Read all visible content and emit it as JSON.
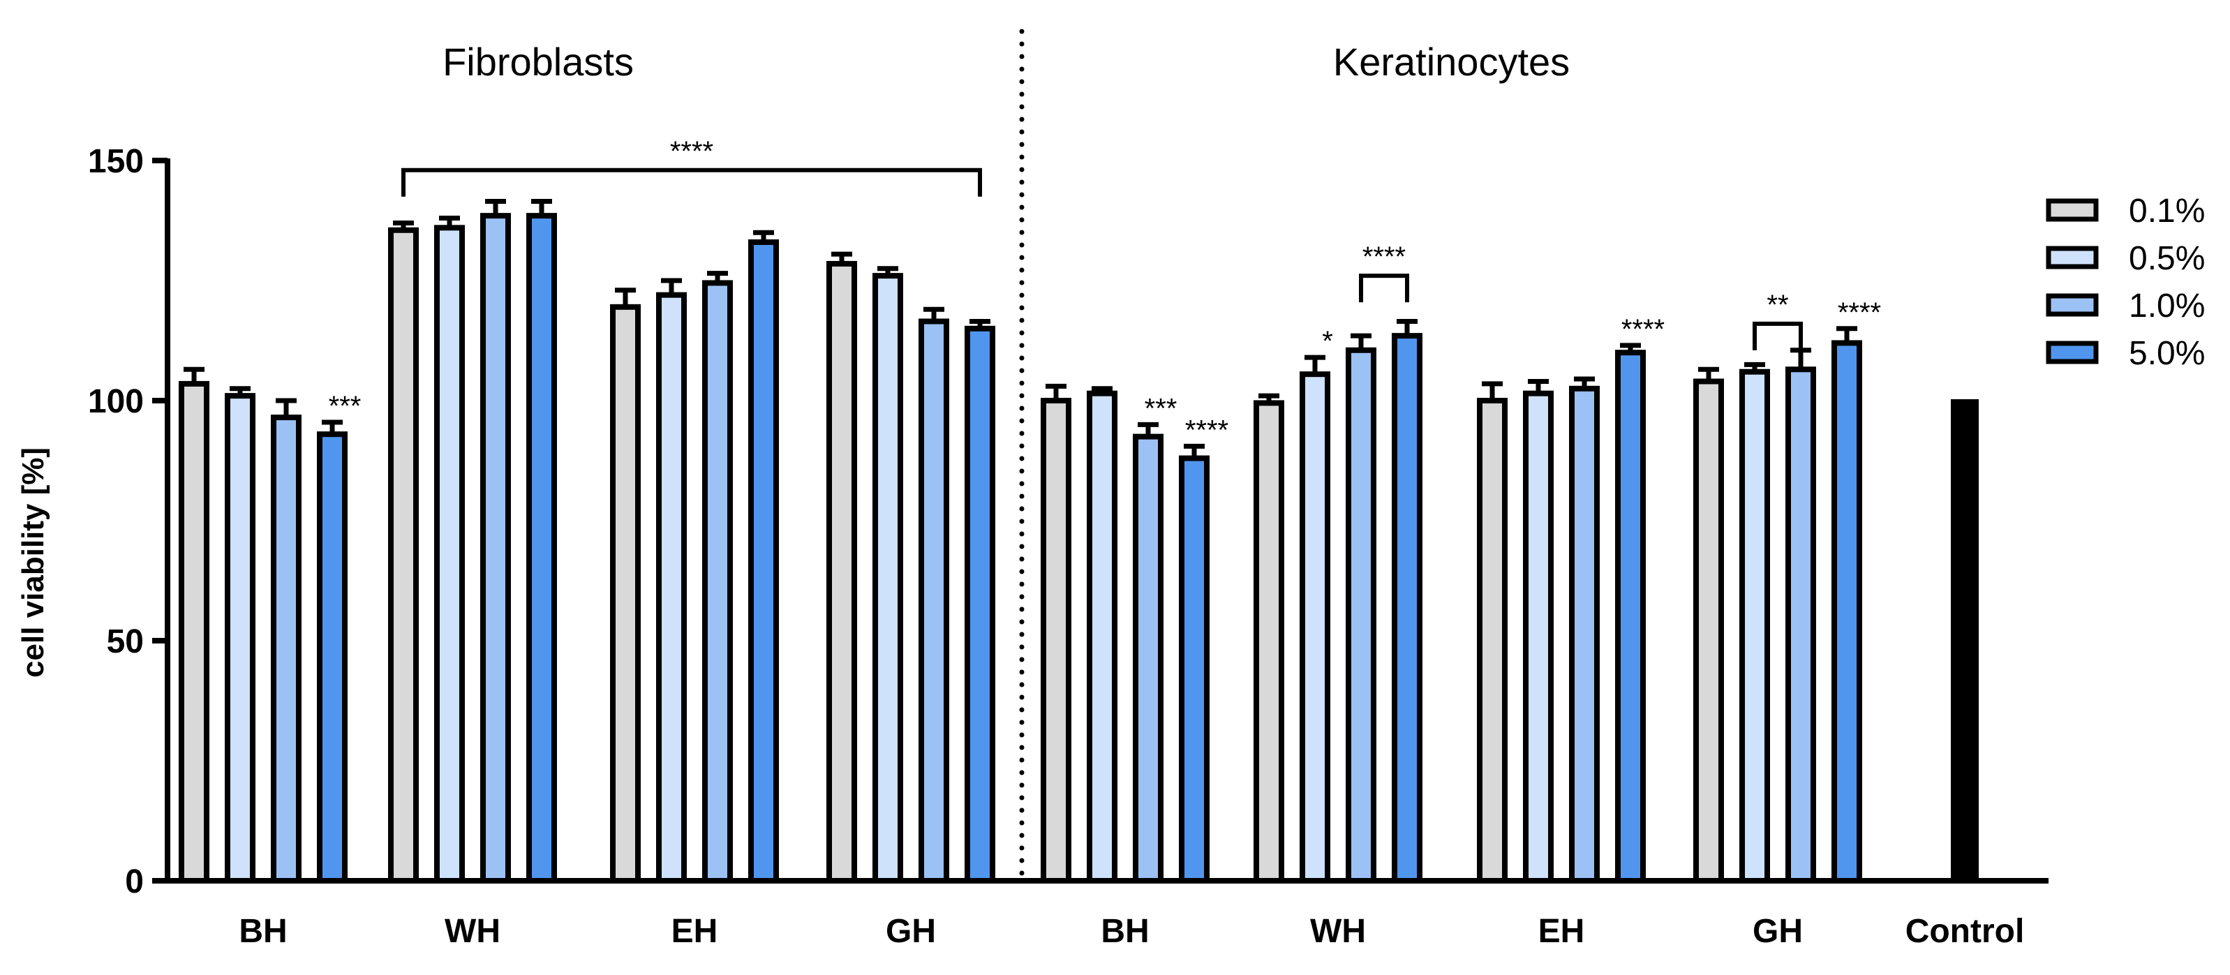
{
  "chart_data": {
    "type": "bar",
    "ylabel": "cell viability [%]",
    "ylim": [
      0,
      150
    ],
    "yticks": [
      0,
      50,
      100,
      150
    ],
    "grid": false,
    "legend_position": "right",
    "panels": [
      {
        "label": "Fibroblasts"
      },
      {
        "label": "Keratinocytes"
      }
    ],
    "legend": [
      {
        "name": "0.1%",
        "color": "#d9d9d9"
      },
      {
        "name": "0.5%",
        "color": "#cfe2fb"
      },
      {
        "name": "1.0%",
        "color": "#9cc1f5"
      },
      {
        "name": "5.0%",
        "color": "#5196ee"
      }
    ],
    "control": {
      "label": "Control",
      "value": 100,
      "color": "#000000"
    },
    "groups": [
      {
        "panel": 0,
        "label": "BH",
        "values": [
          103.5,
          101,
          96.5,
          93
        ],
        "errors": [
          3,
          1.5,
          3.5,
          2.5
        ]
      },
      {
        "panel": 0,
        "label": "WH",
        "values": [
          135.5,
          136,
          138.5,
          138.5
        ],
        "errors": [
          1.5,
          2,
          3,
          3
        ]
      },
      {
        "panel": 0,
        "label": "EH",
        "values": [
          119.5,
          122,
          124.5,
          133
        ],
        "errors": [
          3.5,
          3,
          2,
          2
        ]
      },
      {
        "panel": 0,
        "label": "GH",
        "values": [
          128.5,
          126,
          116.5,
          115
        ],
        "errors": [
          2,
          1.5,
          2.5,
          1.5
        ]
      },
      {
        "panel": 1,
        "label": "BH",
        "values": [
          100,
          101.5,
          92.5,
          88
        ],
        "errors": [
          3,
          1,
          2.5,
          2.5
        ]
      },
      {
        "panel": 1,
        "label": "WH",
        "values": [
          99.5,
          105.5,
          110.5,
          113.5
        ],
        "errors": [
          1.5,
          3.5,
          3,
          3
        ]
      },
      {
        "panel": 1,
        "label": "EH",
        "values": [
          100,
          101.5,
          102.5,
          110
        ],
        "errors": [
          3.5,
          2.5,
          2,
          1.5
        ]
      },
      {
        "panel": 1,
        "label": "GH",
        "values": [
          104,
          106,
          106.5,
          112
        ],
        "errors": [
          2.5,
          1.5,
          4,
          3
        ]
      }
    ],
    "annotations": [
      {
        "text": "***",
        "group": 0,
        "bar": 3,
        "type": "star"
      },
      {
        "text": "****",
        "type": "bracket",
        "group_from": 1,
        "bar_from": 0,
        "group_to": 3,
        "bar_to": 3,
        "y": 148
      },
      {
        "text": "***",
        "group": 4,
        "bar": 2,
        "type": "star"
      },
      {
        "text": "****",
        "group": 4,
        "bar": 3,
        "type": "star"
      },
      {
        "text": "*",
        "group": 5,
        "bar": 1,
        "type": "star"
      },
      {
        "text": "****",
        "type": "bracket",
        "group_from": 5,
        "bar_from": 2,
        "group_to": 5,
        "bar_to": 3,
        "y": 126
      },
      {
        "text": "****",
        "group": 6,
        "bar": 3,
        "type": "star"
      },
      {
        "text": "**",
        "type": "bracket",
        "group_from": 7,
        "bar_from": 1,
        "group_to": 7,
        "bar_to": 2,
        "y": 116
      },
      {
        "text": "****",
        "group": 7,
        "bar": 3,
        "type": "star"
      }
    ]
  }
}
